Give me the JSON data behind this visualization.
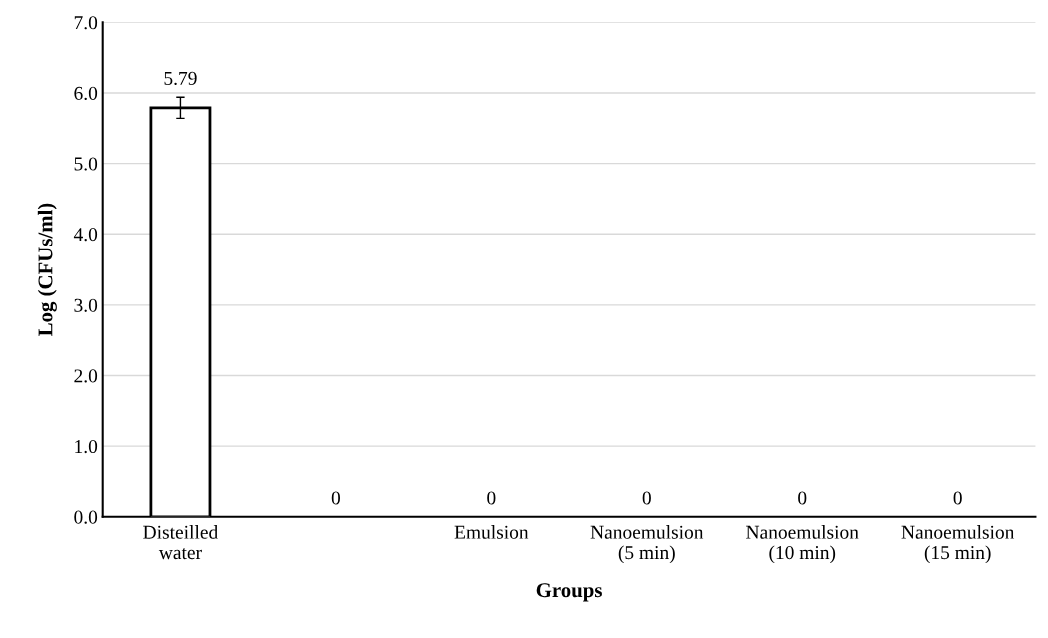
{
  "chart_data": {
    "type": "bar",
    "xlabel": "Groups",
    "ylabel": "Log (CFUs/ml)",
    "categories": [
      "Disteilled\nwater",
      null,
      "Emulsion",
      "Nanoemulsion\n(5 min)",
      "Nanoemulsion\n(10 min)",
      "Nanoemulsion\n(15 min)"
    ],
    "values": [
      5.79,
      0,
      0,
      0,
      0,
      0
    ],
    "errors": [
      0.15,
      null,
      null,
      null,
      null,
      null
    ],
    "color": "#ffffff",
    "data_labels": true,
    "ylim": [
      0,
      7
    ],
    "yticks": [
      {
        "value": 0,
        "label": "0.0"
      },
      {
        "value": 1,
        "label": "1.0"
      },
      {
        "value": 2,
        "label": "2.0"
      },
      {
        "value": 3,
        "label": "3.0"
      },
      {
        "value": 4,
        "label": "4.0"
      },
      {
        "value": 5,
        "label": "5.0"
      },
      {
        "value": 6,
        "label": "6.0"
      },
      {
        "value": 7,
        "label": "7.0"
      }
    ],
    "grid": "y"
  }
}
